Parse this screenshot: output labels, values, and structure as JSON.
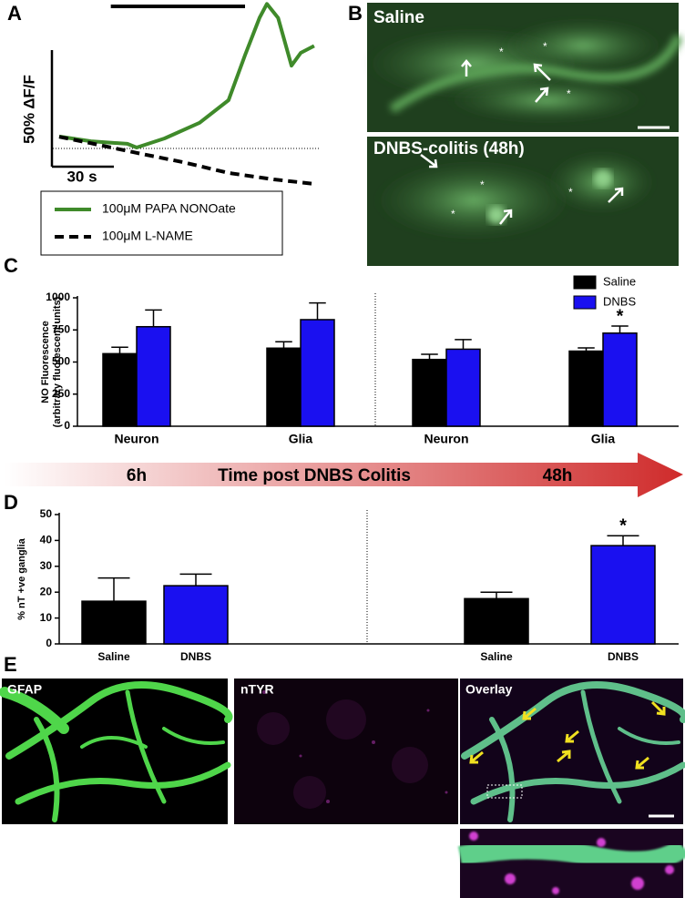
{
  "panel_labels": [
    "A",
    "B",
    "C",
    "D",
    "E"
  ],
  "chart_data": [
    {
      "type": "line",
      "series": [
        {
          "name": "100μM PAPA NONOate",
          "color": "#3f8a2a",
          "dash": false,
          "x": [
            0,
            15.4,
            33,
            37.5,
            51,
            68,
            82,
            90,
            97,
            100.6,
            106,
            112.5,
            117,
            123.5
          ],
          "values": [
            5.1,
            3.1,
            2,
            0.4,
            4.3,
            11,
            20.7,
            40,
            56,
            62,
            56,
            35.5,
            41,
            44
          ]
        },
        {
          "name": "100μM L-NAME",
          "color": "#000000",
          "dash": true,
          "x": [
            0,
            15,
            38,
            60,
            82,
            104,
            123.5
          ],
          "values": [
            5,
            2.3,
            -2,
            -5.9,
            -10.5,
            -13.3,
            -15.2
          ]
        }
      ],
      "scale_bar": {
        "y": 50,
        "y_label": "50% ΔF/F",
        "x": 30,
        "x_label": "30 s"
      },
      "baseline": 0,
      "stimulus": [
        25,
        90
      ]
    },
    {
      "type": "bar",
      "ylabel": [
        "NO Fluorescence",
        "(arbitrary fluorescent units)"
      ],
      "categories": [
        "Neuron",
        "Glia",
        "Neuron",
        "Glia"
      ],
      "series": [
        {
          "name": "Saline",
          "color": "#000000",
          "values": [
            565,
            608,
            520,
            585
          ],
          "errors": [
            50,
            50,
            40,
            25
          ]
        },
        {
          "name": "DNBS",
          "color": "#1a10f0",
          "values": [
            775,
            830,
            600,
            725
          ],
          "errors": [
            130,
            130,
            75,
            55
          ]
        }
      ],
      "ylim": [
        0,
        1000
      ],
      "yticks": [
        0,
        250,
        500,
        750,
        1000
      ],
      "annotations": [
        {
          "text": "*",
          "category": 3,
          "series": 1
        }
      ]
    },
    {
      "type": "bar",
      "ylabel": "% nT +ve ganglia",
      "categories": [
        "Saline",
        "DNBS",
        "Saline",
        "DNBS"
      ],
      "colors": [
        "#000000",
        "#1a10f0",
        "#000000",
        "#1a10f0"
      ],
      "values": [
        16.5,
        22.5,
        17.5,
        38
      ],
      "errors": [
        9,
        4.5,
        2.5,
        3.8
      ],
      "ylim": [
        0,
        50
      ],
      "yticks": [
        0,
        10,
        20,
        30,
        40,
        50
      ],
      "annotations": [
        {
          "text": "*",
          "category": 3
        }
      ]
    }
  ],
  "images_b": {
    "labels": [
      "Saline",
      "DNBS-colitis (48h)"
    ]
  },
  "timeline": {
    "start": "6h",
    "title": "Time post DNBS Colitis",
    "end": "48h"
  },
  "images_e": {
    "labels": [
      "GFAP",
      "nTYR",
      "Overlay"
    ]
  }
}
